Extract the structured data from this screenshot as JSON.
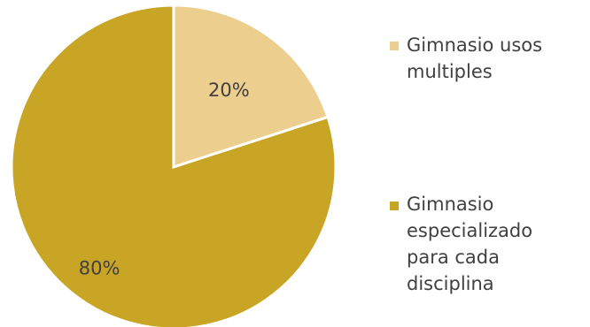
{
  "chart_data": {
    "type": "pie",
    "slices": [
      {
        "label": "Gimnasio usos multiples",
        "value": 20,
        "display": "20%",
        "color": "#ECCF8E"
      },
      {
        "label": "Gimnasio especializado para cada disciplina",
        "value": 80,
        "display": "80%",
        "color": "#C9A526"
      }
    ],
    "legend_position": "right"
  }
}
